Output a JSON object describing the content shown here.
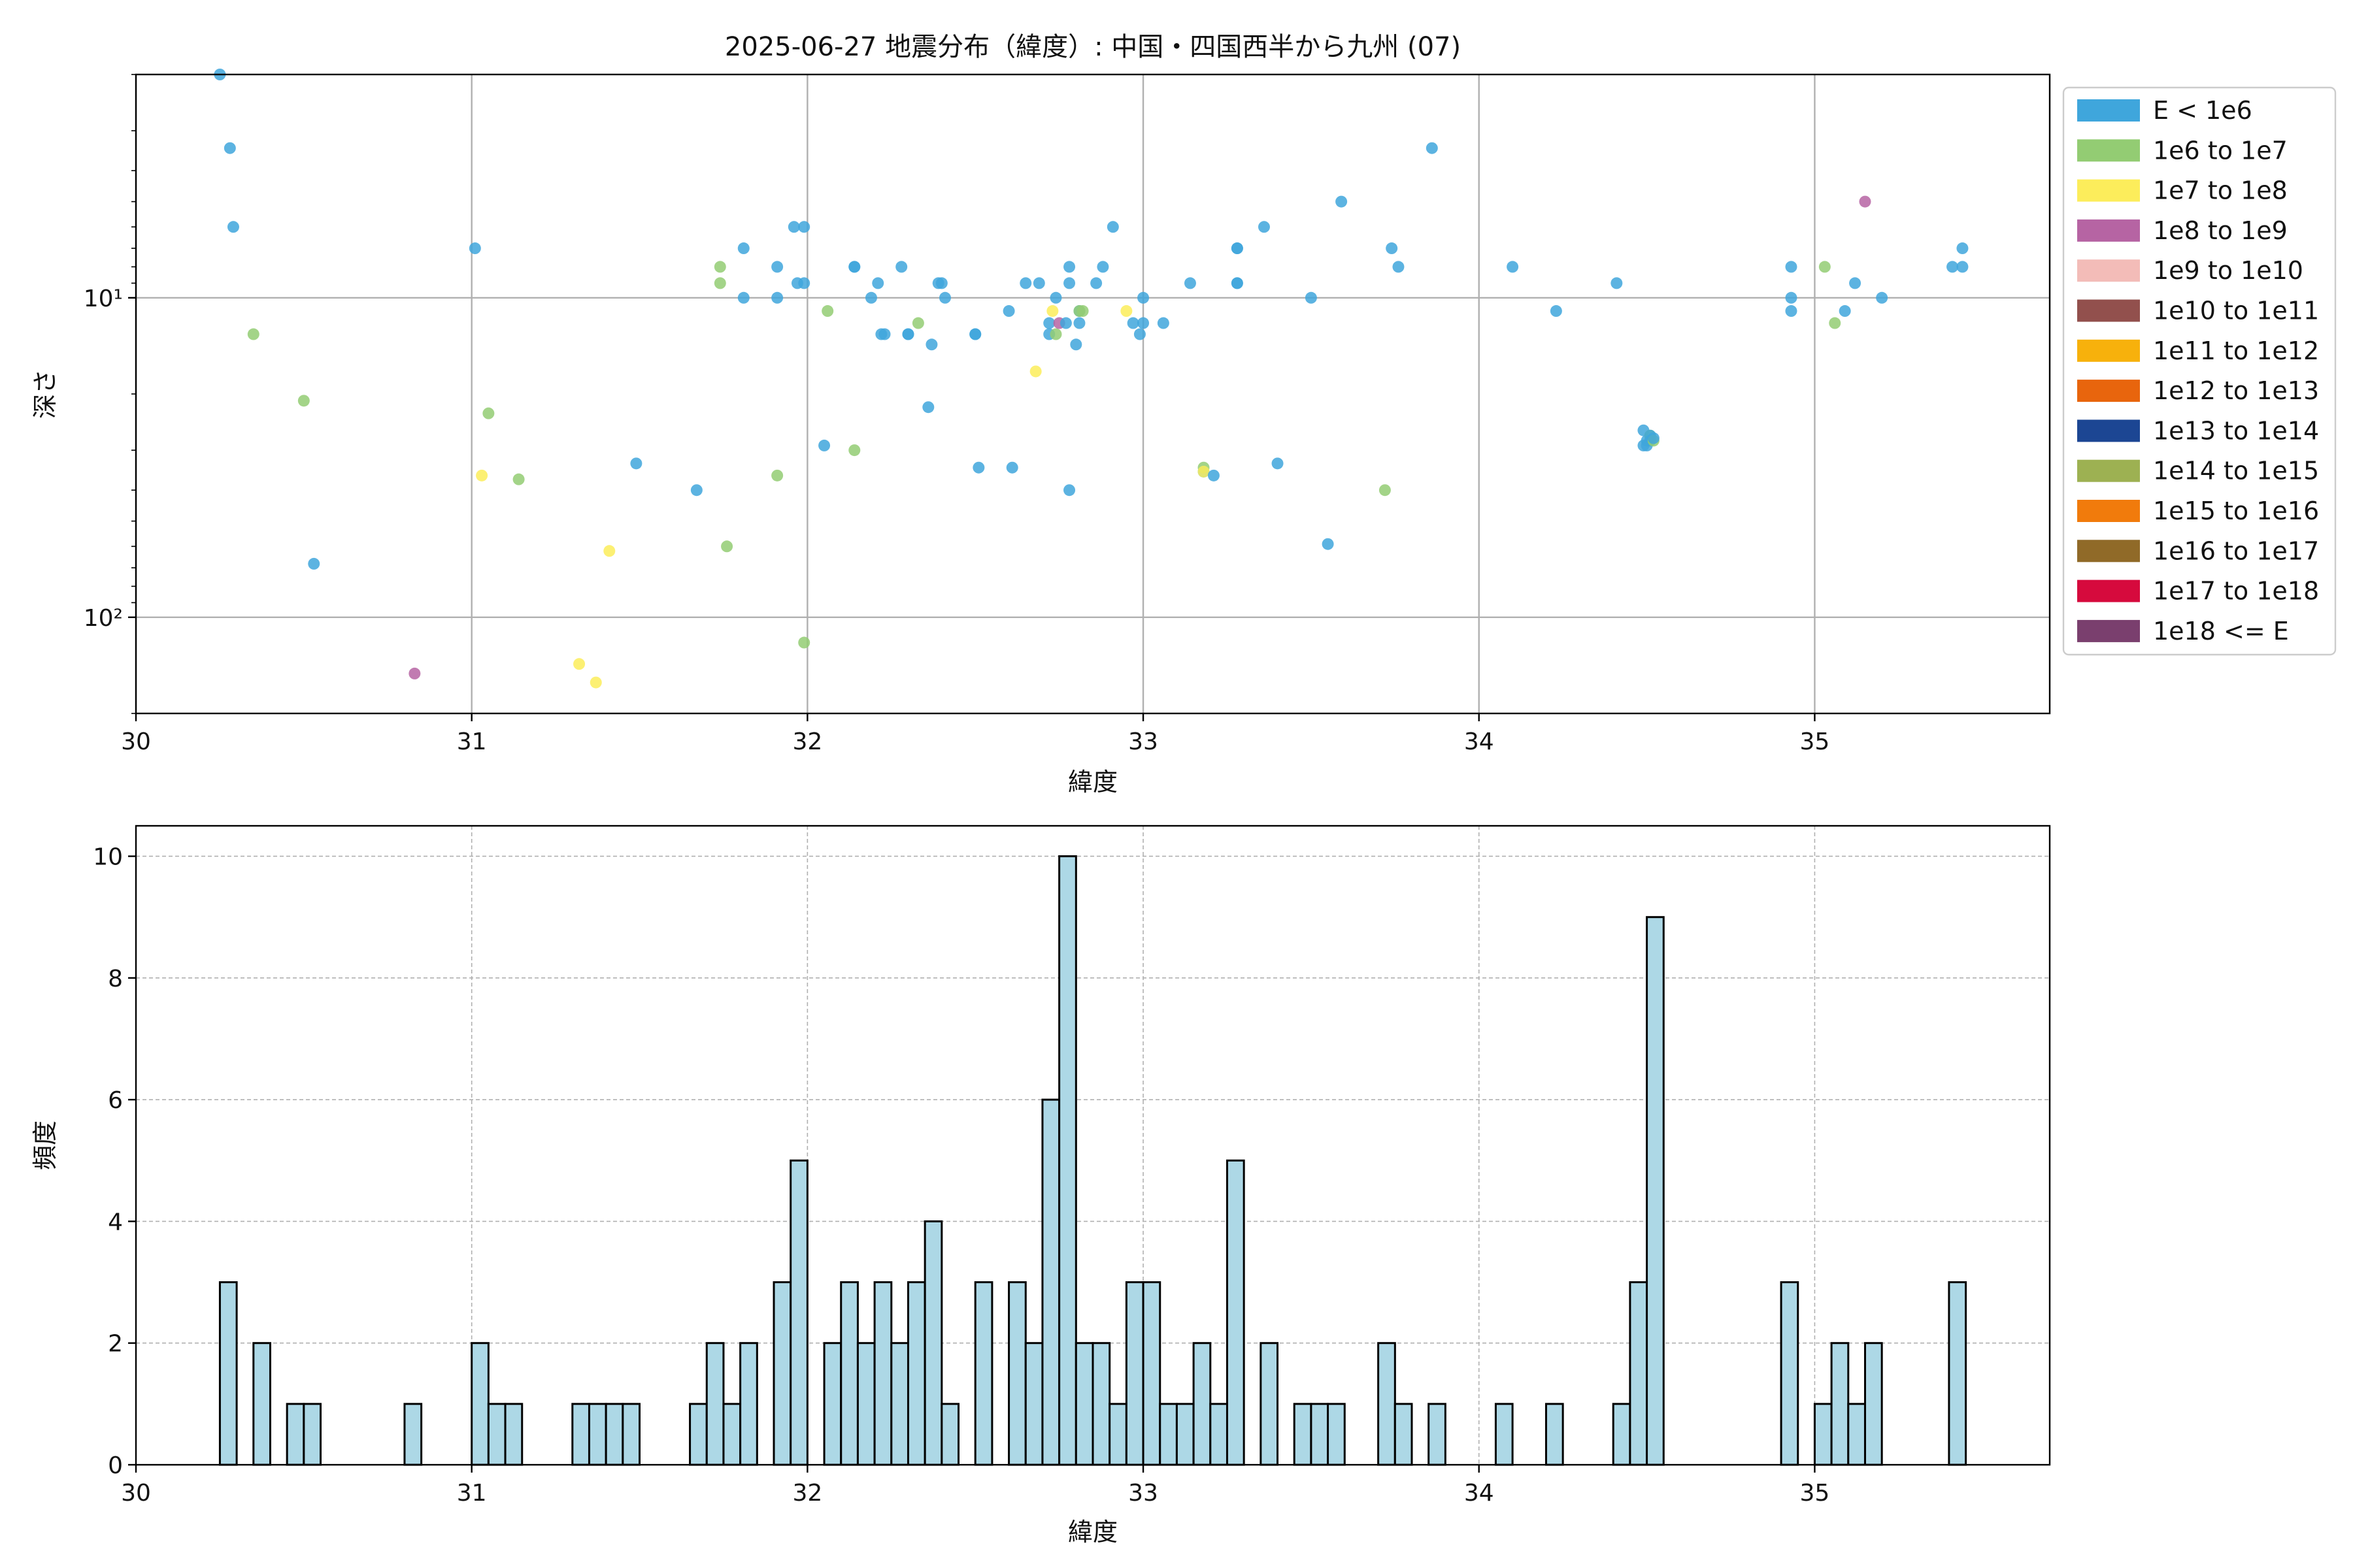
{
  "chart_data": [
    {
      "type": "scatter",
      "title": "2025-06-27 地震分布（緯度）: 中国・四国西半から九州 (07)",
      "xlabel": "緯度",
      "ylabel": "深さ",
      "xlim": [
        30.0,
        35.7
      ],
      "ylim": [
        200,
        2
      ],
      "yscale": "log-inverted",
      "x_ticks": [
        "30",
        "31",
        "32",
        "33",
        "34",
        "35"
      ],
      "y_ticks": [
        "10¹",
        "10²"
      ],
      "grid": true,
      "legend_placement": "outside right, top",
      "legend": [
        {
          "label": "E < 1e6",
          "color": "#3fa6dc"
        },
        {
          "label": "1e6 to 1e7",
          "color": "#93cc73"
        },
        {
          "label": "1e7 to 1e8",
          "color": "#fced5b"
        },
        {
          "label": "1e8 to 1e9",
          "color": "#b664a3"
        },
        {
          "label": "1e9 to 1e10",
          "color": "#f3bcb8"
        },
        {
          "label": "1e10 to 1e11",
          "color": "#92504d"
        },
        {
          "label": "1e11 to 1e12",
          "color": "#f7b10c"
        },
        {
          "label": "1e12 to 1e13",
          "color": "#e8650d"
        },
        {
          "label": "1e13 to 1e14",
          "color": "#1c4693"
        },
        {
          "label": "1e14 to 1e15",
          "color": "#9db152"
        },
        {
          "label": "1e15 to 1e16",
          "color": "#f17b0c"
        },
        {
          "label": "1e16 to 1e17",
          "color": "#906a28"
        },
        {
          "label": "1e17 to 1e18",
          "color": "#d60a3d"
        },
        {
          "label": "1e18 <= E",
          "color": "#7a3f6e"
        }
      ],
      "points": [
        [
          30.25,
          2.0,
          0
        ],
        [
          30.28,
          3.4,
          0
        ],
        [
          30.29,
          6.0,
          0
        ],
        [
          30.35,
          13.0,
          1
        ],
        [
          30.5,
          21.0,
          1
        ],
        [
          30.53,
          68.0,
          0
        ],
        [
          30.83,
          150.0,
          3
        ],
        [
          31.01,
          7.0,
          0
        ],
        [
          31.03,
          36.0,
          2
        ],
        [
          31.05,
          23.0,
          1
        ],
        [
          31.14,
          37.0,
          1
        ],
        [
          31.32,
          140.0,
          2
        ],
        [
          31.37,
          160.0,
          2
        ],
        [
          31.41,
          62.0,
          2
        ],
        [
          31.49,
          33.0,
          0
        ],
        [
          31.67,
          40.0,
          0
        ],
        [
          31.74,
          8.0,
          1
        ],
        [
          31.74,
          9.0,
          1
        ],
        [
          31.76,
          60.0,
          1
        ],
        [
          31.81,
          7.0,
          0
        ],
        [
          31.81,
          10.0,
          0
        ],
        [
          31.91,
          8.0,
          0
        ],
        [
          31.91,
          10.0,
          0
        ],
        [
          31.91,
          36.0,
          1
        ],
        [
          31.96,
          6.0,
          0
        ],
        [
          31.97,
          9.0,
          0
        ],
        [
          31.99,
          9.0,
          0
        ],
        [
          31.99,
          6.0,
          0
        ],
        [
          31.99,
          120.0,
          1
        ],
        [
          32.05,
          29.0,
          0
        ],
        [
          32.06,
          11.0,
          1
        ],
        [
          32.14,
          8.0,
          0
        ],
        [
          32.14,
          8.0,
          0
        ],
        [
          32.14,
          30.0,
          1
        ],
        [
          32.19,
          10.0,
          0
        ],
        [
          32.21,
          9.0,
          0
        ],
        [
          32.22,
          13.0,
          0
        ],
        [
          32.23,
          13.0,
          0
        ],
        [
          32.28,
          8.0,
          0
        ],
        [
          32.3,
          13.0,
          0
        ],
        [
          32.3,
          13.0,
          0
        ],
        [
          32.33,
          12.0,
          1
        ],
        [
          32.36,
          22.0,
          0
        ],
        [
          32.37,
          14.0,
          0
        ],
        [
          32.39,
          9.0,
          0
        ],
        [
          32.4,
          9.0,
          0
        ],
        [
          32.41,
          10.0,
          0
        ],
        [
          32.5,
          13.0,
          0
        ],
        [
          32.5,
          13.0,
          0
        ],
        [
          32.51,
          34.0,
          0
        ],
        [
          32.6,
          11.0,
          0
        ],
        [
          32.61,
          34.0,
          0
        ],
        [
          32.65,
          9.0,
          0
        ],
        [
          32.68,
          17.0,
          2
        ],
        [
          32.69,
          9.0,
          0
        ],
        [
          32.72,
          12.0,
          0
        ],
        [
          32.72,
          13.0,
          0
        ],
        [
          32.73,
          11.0,
          2
        ],
        [
          32.74,
          10.0,
          0
        ],
        [
          32.74,
          13.0,
          1
        ],
        [
          32.75,
          12.0,
          3
        ],
        [
          32.77,
          12.0,
          0
        ],
        [
          32.78,
          8.0,
          0
        ],
        [
          32.78,
          9.0,
          0
        ],
        [
          32.78,
          40.0,
          0
        ],
        [
          32.8,
          14.0,
          0
        ],
        [
          32.81,
          11.0,
          0
        ],
        [
          32.81,
          11.0,
          1
        ],
        [
          32.81,
          12.0,
          0
        ],
        [
          32.82,
          11.0,
          1
        ],
        [
          32.86,
          9.0,
          0
        ],
        [
          32.88,
          8.0,
          0
        ],
        [
          32.91,
          6.0,
          0
        ],
        [
          32.95,
          11.0,
          2
        ],
        [
          32.97,
          12.0,
          0
        ],
        [
          32.99,
          13.0,
          0
        ],
        [
          33.0,
          10.0,
          0
        ],
        [
          33.0,
          12.0,
          0
        ],
        [
          33.06,
          12.0,
          0
        ],
        [
          33.14,
          9.0,
          0
        ],
        [
          33.18,
          35.0,
          0
        ],
        [
          33.18,
          34.0,
          1
        ],
        [
          33.18,
          35.0,
          2
        ],
        [
          33.21,
          36.0,
          0
        ],
        [
          33.28,
          7.0,
          0
        ],
        [
          33.28,
          7.0,
          0
        ],
        [
          33.28,
          9.0,
          0
        ],
        [
          33.28,
          9.0,
          0
        ],
        [
          33.36,
          6.0,
          0
        ],
        [
          33.4,
          33.0,
          0
        ],
        [
          33.5,
          10.0,
          0
        ],
        [
          33.55,
          59.0,
          0
        ],
        [
          33.59,
          5.0,
          0
        ],
        [
          33.72,
          40.0,
          1
        ],
        [
          33.74,
          7.0,
          0
        ],
        [
          33.76,
          8.0,
          0
        ],
        [
          33.86,
          3.4,
          0
        ],
        [
          34.1,
          8.0,
          0
        ],
        [
          34.23,
          11.0,
          0
        ],
        [
          34.41,
          9.0,
          0
        ],
        [
          34.49,
          26.0,
          0
        ],
        [
          34.49,
          29.0,
          0
        ],
        [
          34.5,
          28.0,
          0
        ],
        [
          34.5,
          29.0,
          0
        ],
        [
          34.51,
          27.0,
          1
        ],
        [
          34.51,
          28.0,
          0
        ],
        [
          34.51,
          27.0,
          0
        ],
        [
          34.52,
          28.0,
          1
        ],
        [
          34.52,
          27.5,
          0
        ],
        [
          34.93,
          8.0,
          0
        ],
        [
          34.93,
          10.0,
          0
        ],
        [
          34.93,
          11.0,
          0
        ],
        [
          35.03,
          8.0,
          1
        ],
        [
          35.06,
          12.0,
          1
        ],
        [
          35.09,
          11.0,
          0
        ],
        [
          35.12,
          9.0,
          0
        ],
        [
          35.15,
          5.0,
          3
        ],
        [
          35.2,
          10.0,
          0
        ],
        [
          35.41,
          8.0,
          0
        ],
        [
          35.44,
          7.0,
          0
        ],
        [
          35.44,
          8.0,
          0
        ]
      ]
    },
    {
      "type": "bar",
      "xlabel": "緯度",
      "ylabel": "頻度",
      "xlim": [
        30.0,
        35.7
      ],
      "ylim": [
        0,
        10.5
      ],
      "x_ticks": [
        "30",
        "31",
        "32",
        "33",
        "34",
        "35"
      ],
      "y_ticks": [
        "0",
        "2",
        "4",
        "6",
        "8",
        "10"
      ],
      "grid": true,
      "bin_width": 0.05,
      "bar_color": "#add8e6",
      "bins": [
        [
          30.25,
          3
        ],
        [
          30.35,
          2
        ],
        [
          30.45,
          1
        ],
        [
          30.5,
          1
        ],
        [
          30.8,
          1
        ],
        [
          31.0,
          2
        ],
        [
          31.05,
          1
        ],
        [
          31.1,
          1
        ],
        [
          31.3,
          1
        ],
        [
          31.35,
          1
        ],
        [
          31.4,
          1
        ],
        [
          31.45,
          1
        ],
        [
          31.65,
          1
        ],
        [
          31.7,
          2
        ],
        [
          31.75,
          1
        ],
        [
          31.8,
          2
        ],
        [
          31.9,
          3
        ],
        [
          31.95,
          5
        ],
        [
          32.05,
          2
        ],
        [
          32.1,
          3
        ],
        [
          32.15,
          2
        ],
        [
          32.2,
          3
        ],
        [
          32.25,
          2
        ],
        [
          32.3,
          3
        ],
        [
          32.35,
          4
        ],
        [
          32.4,
          1
        ],
        [
          32.5,
          3
        ],
        [
          32.6,
          3
        ],
        [
          32.65,
          2
        ],
        [
          32.7,
          6
        ],
        [
          32.75,
          10
        ],
        [
          32.8,
          2
        ],
        [
          32.85,
          2
        ],
        [
          32.9,
          1
        ],
        [
          32.95,
          3
        ],
        [
          33.0,
          3
        ],
        [
          33.05,
          1
        ],
        [
          33.1,
          1
        ],
        [
          33.15,
          2
        ],
        [
          33.2,
          1
        ],
        [
          33.25,
          5
        ],
        [
          33.35,
          2
        ],
        [
          33.45,
          1
        ],
        [
          33.5,
          1
        ],
        [
          33.55,
          1
        ],
        [
          33.7,
          2
        ],
        [
          33.75,
          1
        ],
        [
          33.85,
          1
        ],
        [
          34.05,
          1
        ],
        [
          34.2,
          1
        ],
        [
          34.4,
          1
        ],
        [
          34.45,
          3
        ],
        [
          34.5,
          9
        ],
        [
          34.9,
          3
        ],
        [
          35.0,
          1
        ],
        [
          35.05,
          2
        ],
        [
          35.1,
          1
        ],
        [
          35.15,
          2
        ],
        [
          35.4,
          3
        ]
      ]
    }
  ]
}
